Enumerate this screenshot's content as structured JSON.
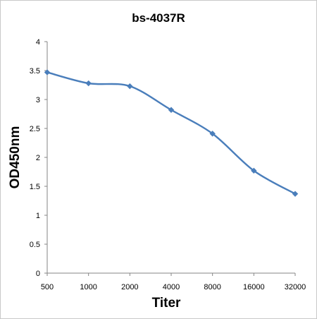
{
  "chart_data": {
    "type": "line",
    "title": "bs-4037R",
    "xlabel": "Titer",
    "ylabel": "OD450nm",
    "categories": [
      "500",
      "1000",
      "2000",
      "4000",
      "8000",
      "16000",
      "32000"
    ],
    "yticks": [
      "0",
      "0.5",
      "1",
      "1.5",
      "2",
      "2.5",
      "3",
      "3.5",
      "4"
    ],
    "ylim": [
      0,
      4
    ],
    "grid": false,
    "legend": "none",
    "series": [
      {
        "values": [
          3.47,
          3.28,
          3.23,
          2.82,
          2.41,
          1.77,
          1.37
        ],
        "color": "#4a7ebb",
        "marker": "diamond"
      }
    ]
  }
}
